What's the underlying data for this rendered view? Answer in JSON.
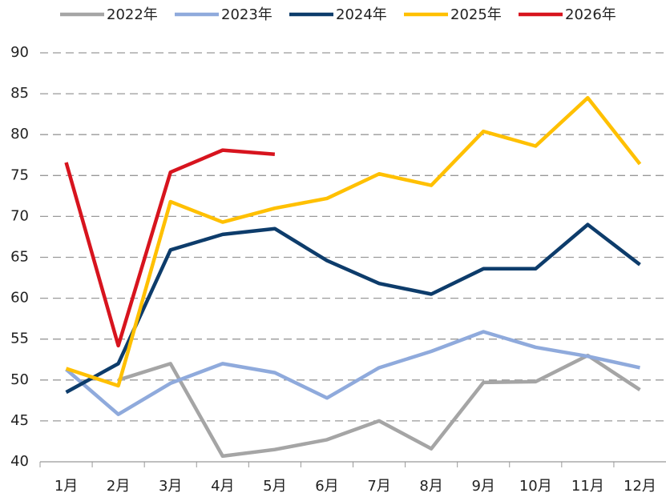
{
  "chart_data": {
    "type": "line",
    "categories": [
      "1月",
      "2月",
      "3月",
      "4月",
      "5月",
      "6月",
      "7月",
      "8月",
      "9月",
      "10月",
      "11月",
      "12月"
    ],
    "series": [
      {
        "name": "2022年",
        "color": "#a5a5a5",
        "values": [
          null,
          50,
          52,
          40.7,
          41.5,
          42.7,
          45,
          41.6,
          49.7,
          49.8,
          53,
          48.8
        ]
      },
      {
        "name": "2023年",
        "color": "#8faadc",
        "values": [
          51.3,
          45.8,
          49.6,
          52,
          50.9,
          47.8,
          51.5,
          53.5,
          55.9,
          54,
          52.9,
          51.5
        ]
      },
      {
        "name": "2024年",
        "color": "#0d3c6b",
        "values": [
          48.5,
          52,
          65.9,
          67.8,
          68.5,
          64.6,
          61.8,
          60.5,
          63.6,
          63.6,
          69,
          64.1
        ]
      },
      {
        "name": "2025年",
        "color": "#ffc000",
        "values": [
          51.4,
          49.3,
          71.8,
          69.3,
          71,
          72.2,
          75.2,
          73.8,
          80.4,
          78.6,
          84.5,
          76.4
        ]
      },
      {
        "name": "2026年",
        "color": "#d7141e",
        "values": [
          76.6,
          54.2,
          75.4,
          78.1,
          77.6,
          null,
          null,
          null,
          null,
          null,
          null,
          null
        ]
      }
    ],
    "ylim": [
      40,
      90
    ],
    "yticks": [
      40,
      45,
      50,
      55,
      60,
      65,
      70,
      75,
      80,
      85,
      90
    ],
    "grid": true
  }
}
